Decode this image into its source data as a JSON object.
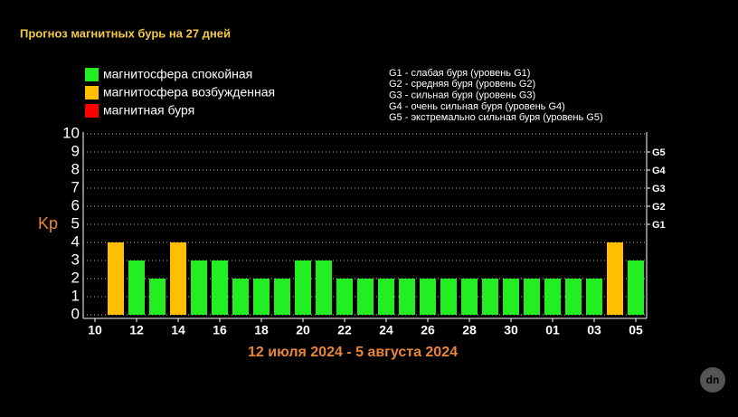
{
  "chart_data": {
    "type": "bar",
    "title": "Прогноз магнитных бурь на 27 дней",
    "subtitle": "12 июля 2024 - 5 августа 2024",
    "y_label": "Kp",
    "legend": [
      {
        "label": "магнитосфера спокойная",
        "color": "#22ee22"
      },
      {
        "label": "магнитосфера возбужденная",
        "color": "#ffbf00"
      },
      {
        "label": "магнитная буря",
        "color": "#ff0000"
      }
    ],
    "notes": [
      "G1 - слабая буря (уровень G1)",
      "G2 - средняя буря (уровень G2)",
      "G3 - сильная буря (уровень G3)",
      "G4 - очень сильная буря (уровень G4)",
      "G5 - экстремально сильная буря (уровень G5)"
    ],
    "categories": [
      "10",
      null,
      "12",
      null,
      "14",
      null,
      "16",
      null,
      "18",
      null,
      "20",
      null,
      "22",
      null,
      "24",
      null,
      "26",
      null,
      "28",
      null,
      "30",
      null,
      "01",
      null,
      "03",
      null,
      "05"
    ],
    "values": [
      null,
      4,
      3,
      2,
      4,
      3,
      3,
      2,
      2,
      2,
      3,
      3,
      2,
      2,
      2,
      2,
      2,
      2,
      2,
      2,
      2,
      2,
      2,
      2,
      2,
      4,
      3
    ],
    "colors": [
      null,
      "#ffbf00",
      "#22ee22",
      "#22ee22",
      "#ffbf00",
      "#22ee22",
      "#22ee22",
      "#22ee22",
      "#22ee22",
      "#22ee22",
      "#22ee22",
      "#22ee22",
      "#22ee22",
      "#22ee22",
      "#22ee22",
      "#22ee22",
      "#22ee22",
      "#22ee22",
      "#22ee22",
      "#22ee22",
      "#22ee22",
      "#22ee22",
      "#22ee22",
      "#22ee22",
      "#22ee22",
      "#ffbf00",
      "#22ee22"
    ],
    "ylim": [
      0,
      10
    ],
    "yticks": [
      0,
      1,
      2,
      3,
      4,
      5,
      6,
      7,
      8,
      9,
      10
    ],
    "y2lim": [
      0,
      10
    ],
    "y2ticks": [
      {
        "value": 5,
        "label": "G1"
      },
      {
        "value": 6,
        "label": "G2"
      },
      {
        "value": 7,
        "label": "G3"
      },
      {
        "value": 8,
        "label": "G4"
      },
      {
        "value": 9,
        "label": "G5"
      }
    ],
    "grid": true
  }
}
